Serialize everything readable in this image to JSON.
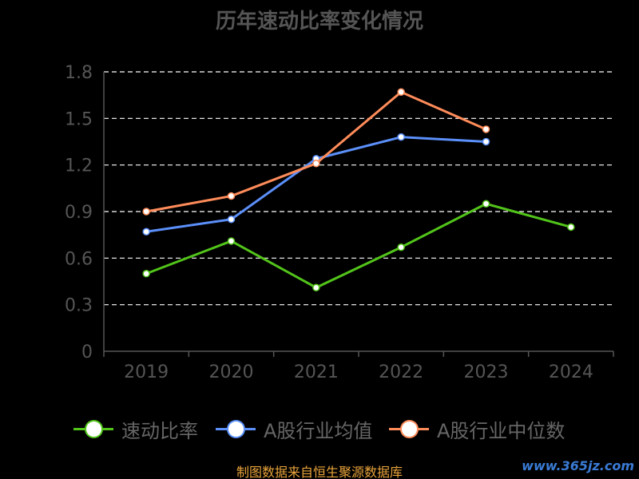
{
  "title": "历年速动比率变化情况",
  "source_note": "制图数据来自恒生聚源数据库",
  "watermark": "www.365jz.com",
  "colors": {
    "background": "#000000",
    "axis": "#555555",
    "grid": "#ffffff",
    "tick_text": "#555555",
    "series": [
      "#52C41A",
      "#5B8FF9",
      "#FF8C5A"
    ]
  },
  "chart_data": {
    "type": "line",
    "categories": [
      "2019",
      "2020",
      "2021",
      "2022",
      "2023",
      "2024"
    ],
    "ylim": [
      0,
      1.8
    ],
    "yticks": [
      "0",
      "0.3",
      "0.6",
      "0.9",
      "1.2",
      "1.5",
      "1.8"
    ],
    "grid": true,
    "grid_style": "dashed",
    "legend_position": "bottom",
    "xlabel": "",
    "ylabel": "",
    "series": [
      {
        "name": "速动比率",
        "values": [
          0.5,
          0.71,
          0.41,
          0.67,
          0.95,
          0.8
        ]
      },
      {
        "name": "A股行业均值",
        "values": [
          0.77,
          0.85,
          1.24,
          1.38,
          1.35,
          null
        ]
      },
      {
        "name": "A股行业中位数",
        "values": [
          0.9,
          1.0,
          1.21,
          1.67,
          1.43,
          null
        ]
      }
    ]
  }
}
